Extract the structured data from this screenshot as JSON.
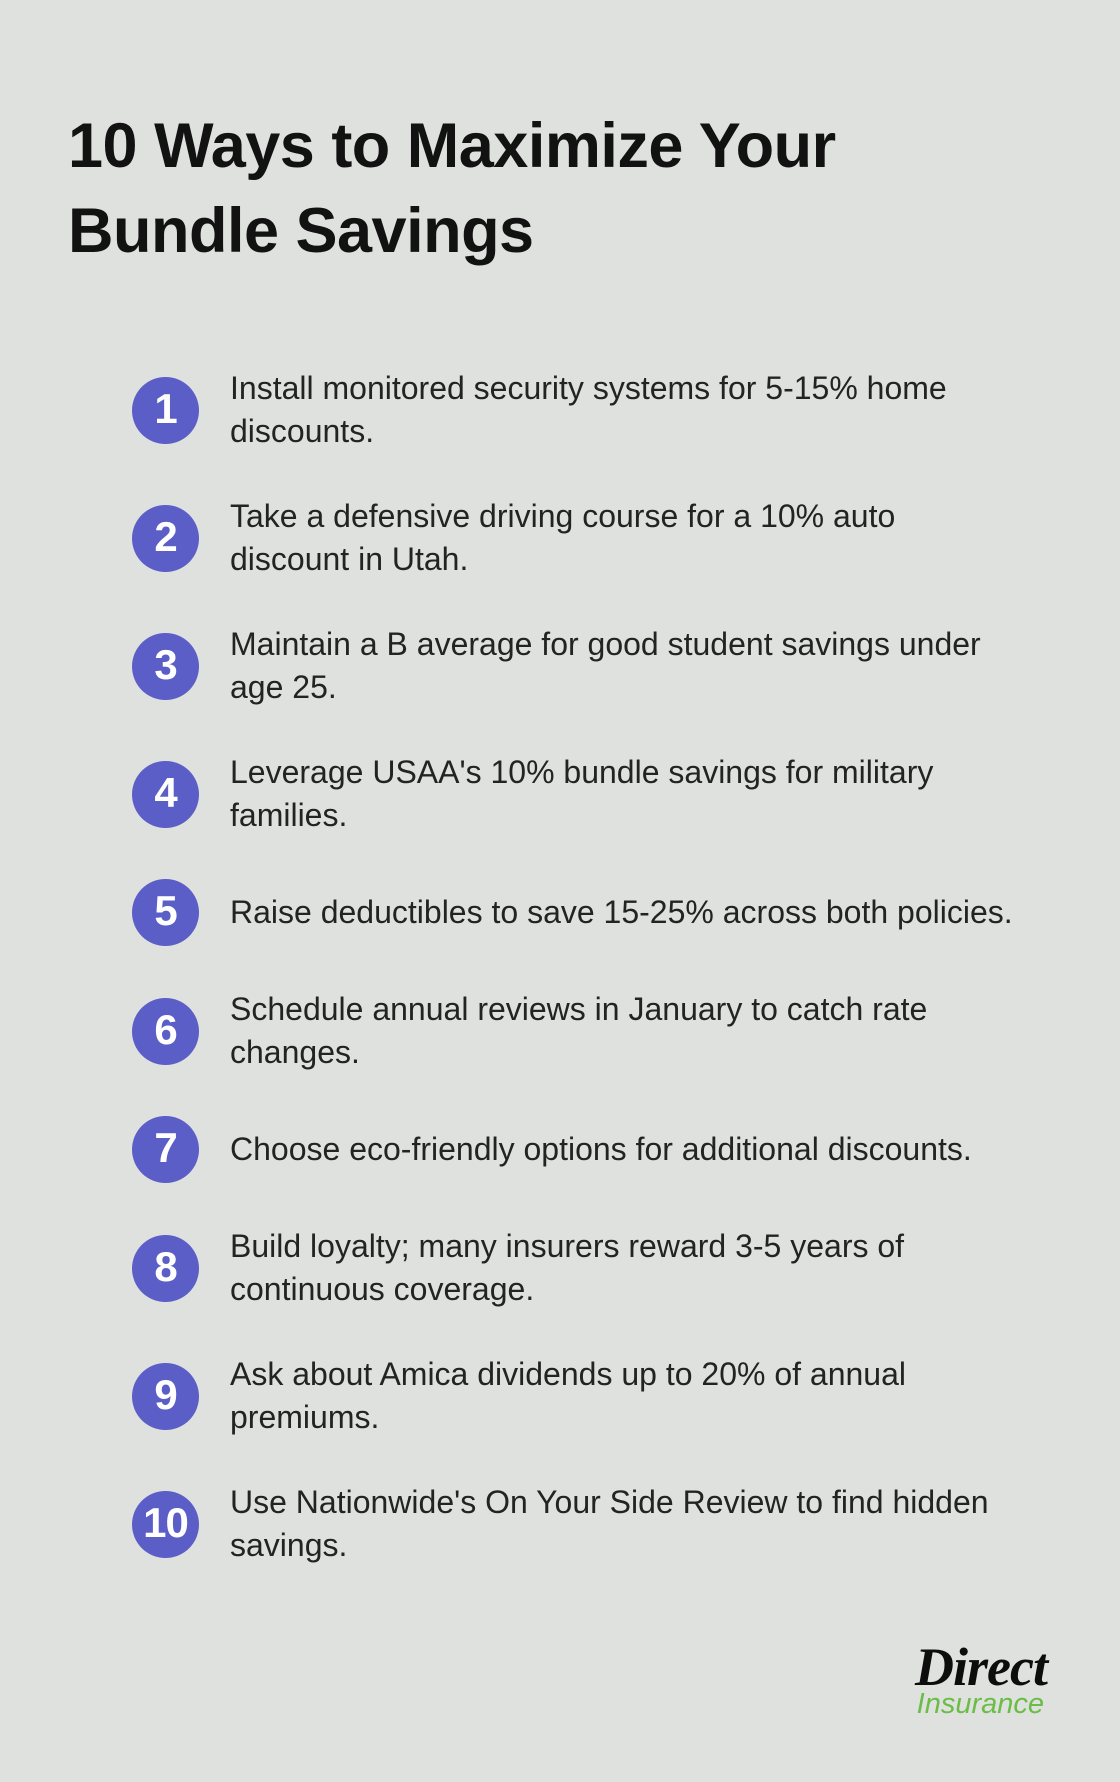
{
  "title": "10 Ways to Maximize Your\nBundle Savings",
  "list": {
    "items": [
      {
        "number": "1",
        "text": "Install monitored security systems for 5-15% home\ndiscounts."
      },
      {
        "number": "2",
        "text": "Take a defensive driving course for a 10% auto\ndiscount in Utah."
      },
      {
        "number": "3",
        "text": "Maintain a B average for good student savings under\nage 25."
      },
      {
        "number": "4",
        "text": "Leverage USAA's 10% bundle savings for military\nfamilies."
      },
      {
        "number": "5",
        "text": "Raise deductibles to save 15-25% across both policies."
      },
      {
        "number": "6",
        "text": "Schedule annual reviews in January to catch rate\nchanges."
      },
      {
        "number": "7",
        "text": "Choose eco-friendly options for additional discounts."
      },
      {
        "number": "8",
        "text": "Build loyalty; many insurers reward 3-5 years of\ncontinuous coverage."
      },
      {
        "number": "9",
        "text": "Ask about Amica dividends up to 20% of annual\npremiums."
      },
      {
        "number": "10",
        "text": "Use Nationwide's On Your Side Review to find hidden\nsavings."
      }
    ]
  },
  "logo": {
    "brand": "Direct",
    "tagline": "Insurance"
  },
  "colors": {
    "background": "#dfe1df",
    "bullet": "#5a5ec6",
    "bullet-text": "#ffffff",
    "title-text": "#121212",
    "body-text": "#232323",
    "logo-brand": "#0d0d0d",
    "logo-tagline": "#6abd45"
  }
}
